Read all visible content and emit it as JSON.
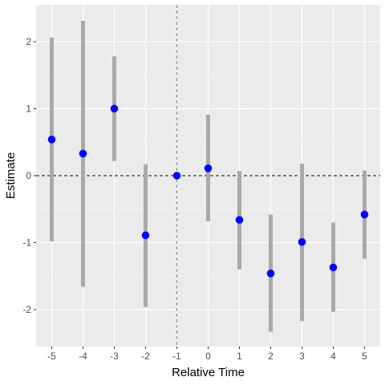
{
  "chart_data": {
    "type": "scatter",
    "xlabel": "Relative Time",
    "ylabel": "Estimate",
    "xlim": [
      -5.5,
      5.5
    ],
    "ylim": [
      -2.55,
      2.55
    ],
    "x_ticks": [
      -5,
      -4,
      -3,
      -2,
      -1,
      0,
      1,
      2,
      3,
      4,
      5
    ],
    "x_tick_labels": [
      "-5",
      "-4",
      "-3",
      "-2",
      "-1",
      "0",
      "1",
      "2",
      "3",
      "4",
      "5"
    ],
    "y_ticks": [
      -2,
      -1,
      0,
      1,
      2
    ],
    "y_tick_labels": [
      "-2",
      "-1",
      "0",
      "1",
      "2"
    ],
    "grid": true,
    "reference_lines": {
      "horizontal_dashed_at_y": 0,
      "vertical_dashed_at_x": -1
    },
    "series": [
      {
        "points": [
          {
            "x": -5,
            "estimate": 0.54,
            "lower": -0.98,
            "upper": 2.06
          },
          {
            "x": -4,
            "estimate": 0.33,
            "lower": -1.66,
            "upper": 2.31
          },
          {
            "x": -3,
            "estimate": 1.0,
            "lower": 0.22,
            "upper": 1.78
          },
          {
            "x": -2,
            "estimate": -0.89,
            "lower": -1.96,
            "upper": 0.17
          },
          {
            "x": -1,
            "estimate": 0.0,
            "lower": 0.0,
            "upper": 0.0
          },
          {
            "x": 0,
            "estimate": 0.11,
            "lower": -0.68,
            "upper": 0.91
          },
          {
            "x": 1,
            "estimate": -0.66,
            "lower": -1.4,
            "upper": 0.07
          },
          {
            "x": 2,
            "estimate": -1.46,
            "lower": -2.33,
            "upper": -0.58
          },
          {
            "x": 3,
            "estimate": -0.99,
            "lower": -2.17,
            "upper": 0.18
          },
          {
            "x": 4,
            "estimate": -1.37,
            "lower": -2.03,
            "upper": -0.7
          },
          {
            "x": 5,
            "estimate": -0.58,
            "lower": -1.24,
            "upper": 0.08
          }
        ]
      }
    ],
    "colors": {
      "panel_background": "#ebebeb",
      "grid_major": "#ffffff",
      "interval": "#a9a9a9",
      "point": "#0000ff",
      "reference_line": "#333333",
      "vertical_line": "#8c8c8c"
    }
  }
}
